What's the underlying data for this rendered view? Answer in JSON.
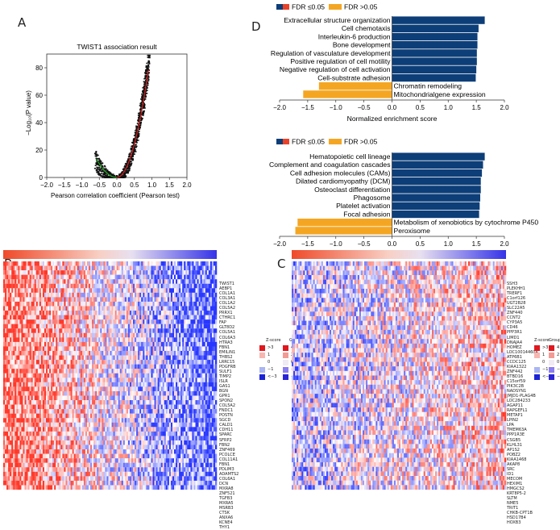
{
  "panels": {
    "a": "A",
    "b": "B",
    "c": "C",
    "d": "D"
  },
  "colors": {
    "dark_blue": "#0d3e78",
    "orange_red": "#e8432a",
    "orange": "#f4a623",
    "red_line": "#d81e1e",
    "green_line": "#1aa31a"
  },
  "volcano": {
    "title": "TWIST1 association result",
    "ylabel": "−Log₁₀(P value)",
    "xlabel": "Pearson correlation coefficient (Pearson test)"
  },
  "enrich_legend": {
    "fdr_sig": "FDR ≤0.05",
    "fdr_ns": "FDR >0.05"
  },
  "heatmap_legend": {
    "zscore_title": "Z-score",
    "group_title": "Group",
    "z_labels": [
      ">3",
      "1",
      "0",
      "−1",
      "<−3"
    ],
    "g_labels": [
      "4",
      "2",
      "0",
      "−2",
      "−4"
    ]
  },
  "genes_b": [
    "TWIST1",
    "AEBP1",
    "COL1A1",
    "COL3A1",
    "COL1A2",
    "COL5A2",
    "PRRX1",
    "CTHRC1",
    "FAP",
    "GLT8D2",
    "COL5A1",
    "COL6A3",
    "HTRA3",
    "FBN1",
    "EMILIN1",
    "THBS2",
    "LRRC15",
    "PDGFRB",
    "SULF1",
    "TIMP2",
    "ISLR",
    "GAS1",
    "BGN",
    "GPR1",
    "SPON2",
    "COL5A2",
    "FNDC1",
    "POSTN",
    "SGCD",
    "CALD1",
    "CDH11",
    "SPARC",
    "SFRP2",
    "FBN2",
    "ZNF469",
    "PCOLCE",
    "COL11A1",
    "FBN1",
    "PDLIM3",
    "ADAMTS2",
    "COL6A1",
    "DCN",
    "MXRA8",
    "ZNF521",
    "TGFB3",
    "MXRA5",
    "MSRB3",
    "CTSK",
    "ANXA6",
    "KCNE4",
    "THY1"
  ],
  "genes_c": [
    "SSH3",
    "PLEKHH1",
    "TRERF1",
    "C1orf126",
    "UGT2B28",
    "SLC22A5",
    "ZNF440",
    "CCNT2",
    "CYP3A5",
    "CD46",
    "PPP3R1",
    "LIMD1",
    "DNAJA4",
    "HOMEZ",
    "LOC100144604",
    "ATP6B1",
    "CCDC125",
    "KIAA1322",
    "ZNF442",
    "BTBD16",
    "C15orf59",
    "PIK3C2B",
    "NADSYN1",
    "JMJD1-PLAG4B",
    "LOC284233",
    "AGAP11",
    "RAPGEFL1",
    "METAP1",
    "LPIN2",
    "LPA",
    "TMEM63A",
    "PPP1R3E",
    "CSGB5",
    "KLHL31",
    "AP1S2",
    "POBZ2",
    "KIAA1468",
    "AKAP8",
    "SRC",
    "ID1",
    "MECOM",
    "HEXIM1",
    "HMGCS2",
    "KRT8P5-2",
    "SLTM",
    "NME5",
    "TRIT1",
    "CHKB-CPT1B",
    "HSD17B4",
    "HOXB3"
  ],
  "chart_data": [
    {
      "type": "scatter",
      "name": "volcano",
      "title": "TWIST1 association result",
      "xlabel": "Pearson correlation coefficient (Pearson test)",
      "ylabel": "−Log₁₀(P value)",
      "xlim": [
        -2.0,
        2.0
      ],
      "ylim": [
        0,
        90
      ],
      "xticks": [
        "−2.0",
        "−1.5",
        "−1.0",
        "−0.5",
        "0.0",
        "0.5",
        "1.0",
        "1.5",
        "2.0"
      ],
      "yticks": [
        "0",
        "20",
        "40",
        "60",
        "80"
      ],
      "points": [
        [
          0.1,
          1
        ],
        [
          0.3,
          8
        ],
        [
          0.5,
          22
        ],
        [
          0.6,
          32
        ],
        [
          0.7,
          48
        ],
        [
          0.8,
          68
        ],
        [
          0.85,
          80
        ],
        [
          0.9,
          88
        ],
        [
          -0.3,
          4
        ],
        [
          -0.5,
          10
        ],
        [
          -0.6,
          15
        ]
      ]
    },
    {
      "type": "bar",
      "name": "enrichment-top",
      "orientation": "horizontal",
      "xlabel": "Normalized enrichment score",
      "xlim": [
        -2.0,
        2.0
      ],
      "xticks": [
        "−2.0",
        "−1.5",
        "−1.0",
        "−0.5",
        "0.0",
        "0.5",
        "1.0",
        "1.5",
        "2.0"
      ],
      "categories": [
        "Extracellular structure organization",
        "Cell chemotaxis",
        "Interleukin-6 production",
        "Bone development",
        "Regulation of vasculature development",
        "Positive regulation of cell motility",
        "Negative regulation of cell activation",
        "Cell-substrate adhesion",
        "Chromatin remodeling",
        "Mitochondrialgene expression"
      ],
      "values": [
        1.65,
        1.54,
        1.52,
        1.52,
        1.51,
        1.51,
        1.5,
        1.49,
        -1.3,
        -1.58
      ],
      "fdr_significant": [
        true,
        true,
        true,
        true,
        true,
        true,
        true,
        true,
        false,
        false
      ]
    },
    {
      "type": "bar",
      "name": "enrichment-bottom",
      "orientation": "horizontal",
      "xlabel": "Normalized enrichment score",
      "xlim": [
        -2.0,
        2.0
      ],
      "xticks": [
        "−2.0",
        "−1.5",
        "−1.0",
        "−0.5",
        "0.0",
        "0.5",
        "1.0",
        "1.5",
        "2.0"
      ],
      "categories": [
        "Hematopoietic cell lineage",
        "Complement and coagulation cascades",
        "Cell adhesion molecules (CAMs)",
        "Dilated cardiomyopathy (DCM)",
        "Osteoclast differentiation",
        "Phagosome",
        "Platelet activation",
        "Focal adhesion",
        "Metabolism of xenobiotics by cytochrome P450",
        "Peroxisome"
      ],
      "values": [
        1.65,
        1.62,
        1.6,
        1.58,
        1.58,
        1.57,
        1.56,
        1.55,
        -1.68,
        -1.72
      ],
      "fdr_significant": [
        true,
        true,
        true,
        true,
        true,
        true,
        true,
        true,
        false,
        false
      ]
    }
  ]
}
